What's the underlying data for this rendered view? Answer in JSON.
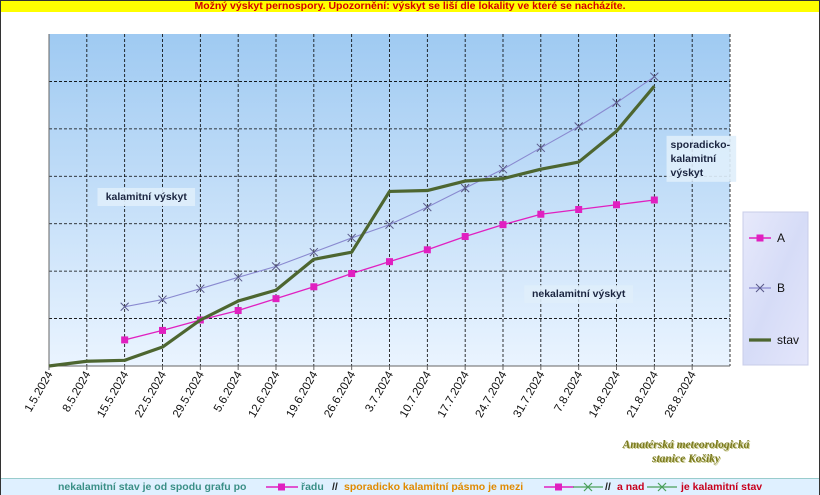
{
  "banner": "Možný výskyt pernospory. Upozornění: výskyt se liší dle lokality ve které se nacházíte.",
  "colors": {
    "banner_bg": "#ffff00",
    "banner_text": "#d40000",
    "series_A": "#e020c0",
    "series_B": "#8a8ad0",
    "series_stav": "#4d6630",
    "plot_bg_top": "#9fcaf2",
    "plot_bg_bottom": "#eaf4ff",
    "grid": "#000000",
    "footer_green": "#3a8f86",
    "footer_orange": "#e08a00",
    "footer_red": "#c8001c"
  },
  "chart_data": {
    "type": "line",
    "categories": [
      "1.5.2024",
      "8.5.2024",
      "15.5.2024",
      "22.5.2024",
      "29.5.2024",
      "5.6.2024",
      "12.6.2024",
      "19.6.2024",
      "26.6.2024",
      "3.7.2024",
      "10.7.2024",
      "17.7.2024",
      "24.7.2024",
      "31.7.2024",
      "7.8.2024",
      "14.8.2024",
      "21.8.2024",
      "28.8.2024"
    ],
    "ylim": [
      0,
      7
    ],
    "grid": true,
    "y_tick_labels": false,
    "legend_position": "right",
    "series": [
      {
        "name": "A",
        "marker": "square",
        "values": [
          null,
          null,
          0.55,
          0.75,
          0.97,
          1.17,
          1.42,
          1.67,
          1.95,
          2.2,
          2.45,
          2.73,
          2.98,
          3.2,
          3.3,
          3.4,
          3.5,
          null
        ]
      },
      {
        "name": "B",
        "marker": "x",
        "values": [
          null,
          null,
          1.25,
          1.4,
          1.63,
          1.87,
          2.1,
          2.4,
          2.7,
          2.98,
          3.35,
          3.75,
          4.15,
          4.6,
          5.05,
          5.55,
          6.1,
          null
        ]
      },
      {
        "name": "stav",
        "marker": "none",
        "values": [
          0.0,
          0.1,
          0.12,
          0.4,
          0.97,
          1.37,
          1.6,
          2.25,
          2.4,
          3.68,
          3.7,
          3.9,
          3.95,
          4.15,
          4.3,
          4.95,
          5.9,
          null
        ]
      }
    ],
    "annotations": [
      {
        "id": "kalamitni",
        "lines": [
          "kalamitní výskyt"
        ],
        "x": "19.5.2024",
        "y": 3.5
      },
      {
        "id": "sporadicko",
        "lines": [
          "sporadicko-",
          "kalamitní",
          "výskyt"
        ],
        "x": "24.8.2024",
        "y": 4.6
      },
      {
        "id": "nekalamitni",
        "lines": [
          "nekalamitní výskyt"
        ],
        "x": "7.8.2024",
        "y": 1.45
      }
    ]
  },
  "station": {
    "line1": "Amatérská meteorologická",
    "line2": "stanice Košiky"
  },
  "footer": {
    "part1": "nekalamitní stav je od spodu grafu po",
    "part2": "řadu",
    "sep1": "//",
    "part3": "sporadicko kalamitní pásmo je mezi",
    "sep2": "//",
    "part4": "a nad",
    "part5": "je kalamitní stav"
  }
}
